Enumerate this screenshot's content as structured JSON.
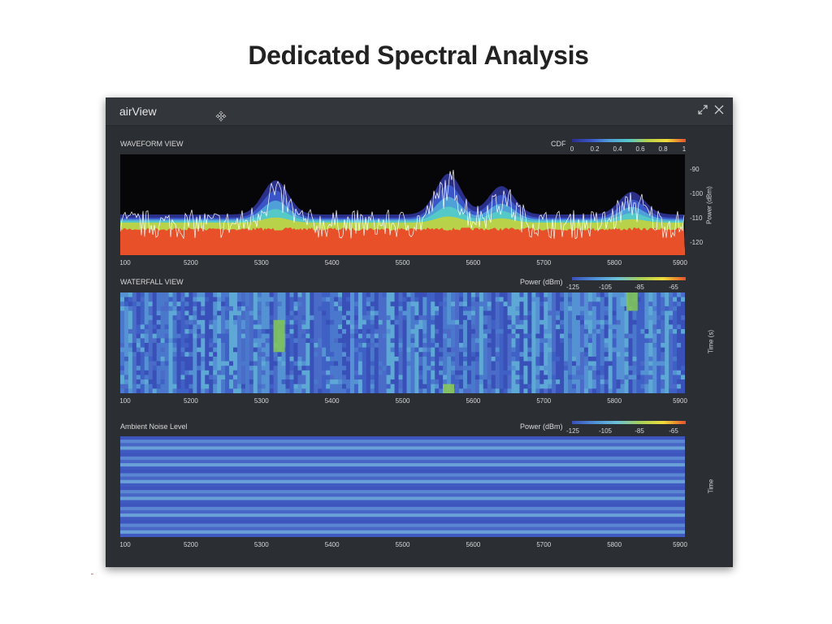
{
  "page": {
    "title": "Dedicated Spectral Analysis"
  },
  "window": {
    "title": "airView"
  },
  "icons": {
    "move": "move-cursor-icon",
    "expand": "expand-icon",
    "close": "close-icon"
  },
  "colors": {
    "window_bg": "#2b2e33",
    "waveform_bg": "#060608",
    "noise_floor": "#e8502a",
    "trace": "#ffffff",
    "cdf_gradient": [
      "#2a2f8a",
      "#3a55c8",
      "#4fa0d8",
      "#55c8c8",
      "#b8d24a",
      "#f0dc3a",
      "#e8502a"
    ],
    "power_gradient": [
      "#3a4fb8",
      "#4f8fd8",
      "#6cc2d8",
      "#a8d058",
      "#f0dc3a",
      "#e8502a"
    ]
  },
  "waveform": {
    "label": "WAVEFORM VIEW",
    "cdf_label": "CDF",
    "cdf_ticks": [
      "0",
      "0.2",
      "0.4",
      "0.6",
      "0.8",
      "1"
    ],
    "y_axis_label": "Power (dBm)",
    "y_ticks": [
      "-90",
      "-100",
      "-110",
      "-120"
    ],
    "x_ticks": [
      "100",
      "5200",
      "5300",
      "5400",
      "5500",
      "5600",
      "5700",
      "5800",
      "5900"
    ],
    "peaks": [
      {
        "frequency": 5320,
        "level": 0.6
      },
      {
        "frequency": 5565,
        "level": 0.72
      },
      {
        "frequency": 5640,
        "level": 0.5
      },
      {
        "frequency": 5825,
        "level": 0.4
      }
    ]
  },
  "waterfall": {
    "label": "WATERFALL VIEW",
    "power_label": "Power (dBm)",
    "power_ticks": [
      "-125",
      "-105",
      "-85",
      "-65"
    ],
    "y_axis_label": "Time (s)",
    "x_ticks": [
      "100",
      "5200",
      "5300",
      "5400",
      "5500",
      "5600",
      "5700",
      "5800",
      "5900"
    ]
  },
  "ambient": {
    "label": "Ambient Noise Level",
    "power_label": "Power (dBm)",
    "power_ticks": [
      "-125",
      "-105",
      "-85",
      "-65"
    ],
    "y_axis_label": "Time",
    "x_ticks": [
      "100",
      "5200",
      "5300",
      "5400",
      "5500",
      "5600",
      "5700",
      "5800",
      "5900"
    ]
  }
}
